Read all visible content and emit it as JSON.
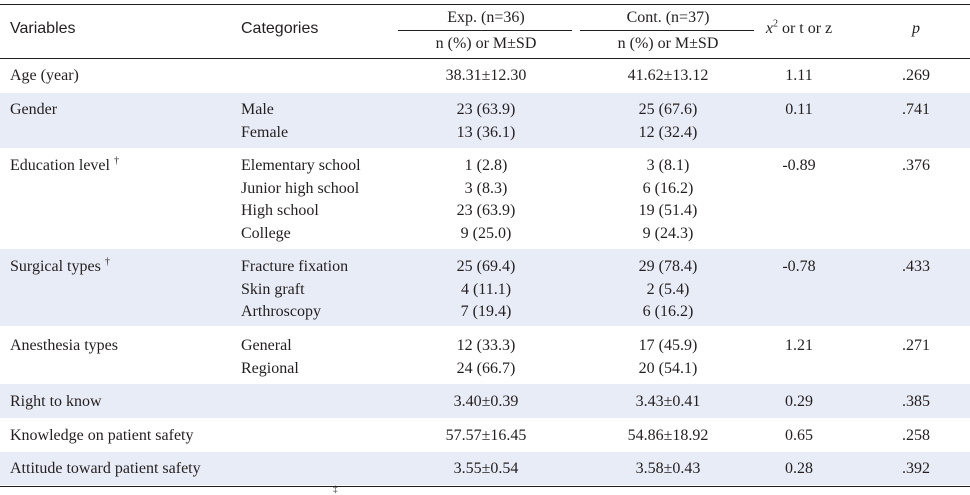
{
  "header": {
    "variables": "Variables",
    "categories": "Categories",
    "exp_group": "Exp. (n=36)",
    "cont_group": "Cont. (n=37)",
    "exp_sub": "n (%) or M±SD",
    "cont_sub": "n (%) or M±SD",
    "stat_x": "x",
    "stat_sup": "2",
    "stat_rest": " or t or z",
    "p": "p"
  },
  "rows": [
    {
      "variable": "Age (year)",
      "categories": [],
      "exp": [
        "38.31±12.30"
      ],
      "cont": [
        "41.62±13.12"
      ],
      "stat": "1.11",
      "p": ".269"
    },
    {
      "variable": "Gender",
      "categories": [
        "Male",
        "Female"
      ],
      "exp": [
        "23 (63.9)",
        "13 (36.1)"
      ],
      "cont": [
        "25 (67.6)",
        "12 (32.4)"
      ],
      "stat": "0.11",
      "p": ".741"
    },
    {
      "variable": "Education level",
      "mark": "†",
      "categories": [
        "Elementary school",
        "Junior high school",
        "High school",
        "College"
      ],
      "exp": [
        "1 (2.8)",
        "3 (8.3)",
        "23 (63.9)",
        "9 (25.0)"
      ],
      "cont": [
        "3 (8.1)",
        "6 (16.2)",
        "19 (51.4)",
        "9 (24.3)"
      ],
      "stat": "-0.89",
      "p": ".376"
    },
    {
      "variable": "Surgical types",
      "mark": "†",
      "categories": [
        "Fracture fixation",
        "Skin graft",
        "Arthroscopy"
      ],
      "exp": [
        "25 (69.4)",
        "4 (11.1)",
        "7 (19.4)"
      ],
      "cont": [
        "29 (78.4)",
        "2 (5.4)",
        "6 (16.2)"
      ],
      "stat": "-0.78",
      "p": ".433"
    },
    {
      "variable": "Anesthesia types",
      "categories": [
        "General",
        "Regional"
      ],
      "exp": [
        "12 (33.3)",
        "24 (66.7)"
      ],
      "cont": [
        "17 (45.9)",
        "20 (54.1)"
      ],
      "stat": "1.21",
      "p": ".271"
    },
    {
      "variable": "Right to know",
      "categories": [],
      "exp": [
        "3.40±0.39"
      ],
      "cont": [
        "3.43±0.41"
      ],
      "stat": "0.29",
      "p": ".385"
    },
    {
      "variable": "Knowledge on patient safety",
      "categories": [],
      "exp": [
        "57.57±16.45"
      ],
      "cont": [
        "54.86±18.92"
      ],
      "stat": "0.65",
      "p": ".258"
    },
    {
      "variable": "Attitude toward patient safety",
      "categories": [],
      "exp": [
        "3.55±0.54"
      ],
      "cont": [
        "3.58±0.43"
      ],
      "stat": "0.28",
      "p": ".392"
    }
  ],
  "footnote_mark": "‡",
  "colors": {
    "band": "#e8ecf6",
    "text": "#231f20",
    "rule": "#231f20"
  }
}
